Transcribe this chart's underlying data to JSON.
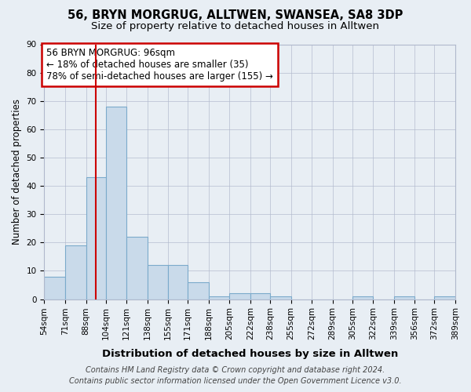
{
  "title1": "56, BRYN MORGRUG, ALLTWEN, SWANSEA, SA8 3DP",
  "title2": "Size of property relative to detached houses in Alltwen",
  "xlabel": "Distribution of detached houses by size in Alltwen",
  "ylabel": "Number of detached properties",
  "footer1": "Contains HM Land Registry data © Crown copyright and database right 2024.",
  "footer2": "Contains public sector information licensed under the Open Government Licence v3.0.",
  "annotation_line1": "56 BRYN MORGRUG: 96sqm",
  "annotation_line2": "← 18% of detached houses are smaller (35)",
  "annotation_line3": "78% of semi-detached houses are larger (155) →",
  "bar_values": [
    8,
    19,
    43,
    68,
    22,
    12,
    12,
    6,
    1,
    2,
    2,
    1,
    0,
    0,
    0,
    1,
    0,
    1,
    0,
    1
  ],
  "bin_edges": [
    54,
    71,
    88,
    104,
    121,
    138,
    155,
    171,
    188,
    205,
    222,
    238,
    255,
    272,
    289,
    305,
    322,
    339,
    356,
    372,
    389
  ],
  "bin_labels": [
    "54sqm",
    "71sqm",
    "88sqm",
    "104sqm",
    "121sqm",
    "138sqm",
    "155sqm",
    "171sqm",
    "188sqm",
    "205sqm",
    "222sqm",
    "238sqm",
    "255sqm",
    "272sqm",
    "289sqm",
    "305sqm",
    "322sqm",
    "339sqm",
    "356sqm",
    "372sqm",
    "389sqm"
  ],
  "bar_color": "#c9daea",
  "bar_edge_color": "#7baacb",
  "vline_x": 96,
  "vline_color": "#cc0000",
  "ylim": [
    0,
    90
  ],
  "yticks": [
    0,
    10,
    20,
    30,
    40,
    50,
    60,
    70,
    80,
    90
  ],
  "bg_color": "#e8eef4",
  "plot_bg_color": "#e8eef4",
  "annotation_box_color": "#ffffff",
  "annotation_box_edge": "#cc0000",
  "grid_color": "#b0b8cc",
  "title1_fontsize": 10.5,
  "title2_fontsize": 9.5,
  "xlabel_fontsize": 9.5,
  "ylabel_fontsize": 8.5,
  "tick_fontsize": 7.5,
  "annotation_fontsize": 8.5,
  "footer_fontsize": 7.0
}
